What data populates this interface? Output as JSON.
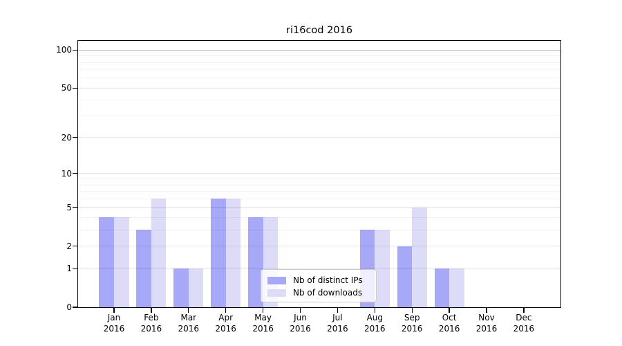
{
  "title": "ri16cod 2016",
  "chart_data": {
    "type": "bar",
    "title": "ri16cod 2016",
    "categories": [
      "Jan 2016",
      "Feb 2016",
      "Mar 2016",
      "Apr 2016",
      "May 2016",
      "Jun 2016",
      "Jul 2016",
      "Aug 2016",
      "Sep 2016",
      "Oct 2016",
      "Nov 2016",
      "Dec 2016"
    ],
    "series": [
      {
        "name": "Nb of distinct IPs",
        "color": "#a8a8f8",
        "values": [
          4,
          3,
          1,
          6,
          4,
          0,
          0,
          3,
          2,
          1,
          0,
          0
        ]
      },
      {
        "name": "Nb of downloads",
        "color": "#dcdcf8",
        "values": [
          4,
          6,
          1,
          6,
          4,
          0,
          0,
          3,
          5,
          1,
          0,
          0
        ]
      }
    ],
    "xlabel": "",
    "ylabel": "",
    "y_scale": "log1p",
    "y_ticks": [
      0,
      1,
      2,
      5,
      10,
      20,
      50,
      100
    ],
    "y_minor_gridlines": [
      3,
      4,
      6,
      7,
      8,
      9,
      30,
      40,
      60,
      70,
      80,
      90
    ],
    "ylim": [
      0,
      118
    ],
    "grid": true,
    "legend_position": "lower center"
  }
}
